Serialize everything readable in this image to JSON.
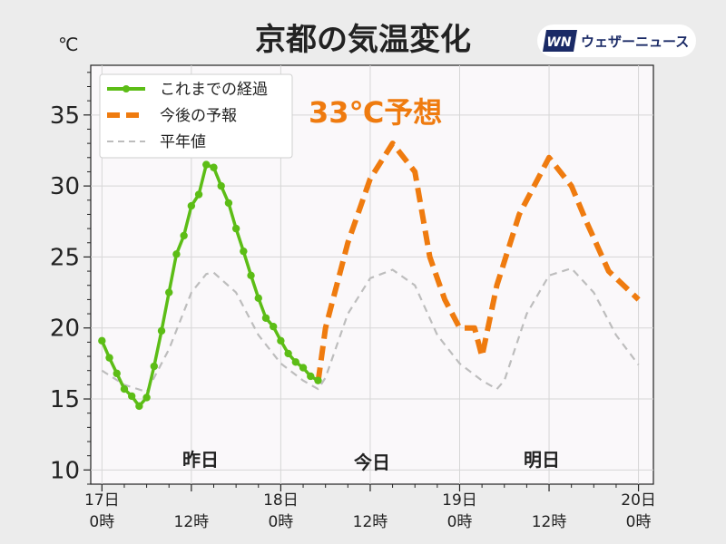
{
  "header": {
    "title": "京都の気温変化",
    "unit": "℃"
  },
  "brand": {
    "logo_text": "WN",
    "name": "ウェザーニュース"
  },
  "annotation": "33℃予想",
  "day_labels": [
    "昨日",
    "今日",
    "明日"
  ],
  "colors": {
    "observed": "#5cbd16",
    "forecast": "#ef7b0f",
    "normal": "#bdbdbd",
    "annotation": "#ef7b0f",
    "brand": "#1a2a66"
  },
  "chart_data": {
    "type": "line",
    "title": "京都の気温変化",
    "ylabel": "℃",
    "ylim": [
      9,
      38.5
    ],
    "xlim": [
      -1.5,
      74
    ],
    "grid": true,
    "legend_position": "top-left",
    "yticks": [
      10,
      15,
      20,
      25,
      30,
      35
    ],
    "xticks": [
      {
        "x": 0,
        "label_line1": "17日",
        "label_line2": "0時"
      },
      {
        "x": 12,
        "label_line1": "",
        "label_line2": "12時"
      },
      {
        "x": 24,
        "label_line1": "18日",
        "label_line2": "0時"
      },
      {
        "x": 36,
        "label_line1": "",
        "label_line2": "12時"
      },
      {
        "x": 48,
        "label_line1": "19日",
        "label_line2": "0時"
      },
      {
        "x": 60,
        "label_line1": "",
        "label_line2": "12時"
      },
      {
        "x": 72,
        "label_line1": "20日",
        "label_line2": "0時"
      }
    ],
    "series": [
      {
        "name": "これまでの経過",
        "style": "solid-markers",
        "x": [
          0,
          1,
          2,
          3,
          4,
          5,
          6,
          7,
          8,
          9,
          10,
          11,
          12,
          13,
          14,
          15,
          16,
          17,
          18,
          19,
          20,
          21,
          22,
          23,
          24,
          25,
          26,
          27,
          28,
          29
        ],
        "y": [
          19.1,
          17.9,
          16.8,
          15.7,
          15.2,
          14.5,
          15.1,
          17.3,
          19.8,
          22.5,
          25.2,
          26.5,
          28.6,
          29.4,
          31.5,
          31.3,
          30.0,
          28.8,
          27.0,
          25.4,
          23.7,
          22.1,
          20.7,
          20.1,
          19.1,
          18.2,
          17.6,
          17.2,
          16.6,
          16.3
        ]
      },
      {
        "name": "今後の予報",
        "style": "dashed-thick",
        "x": [
          29,
          30,
          33,
          36,
          39,
          42,
          44,
          46,
          48,
          50,
          51,
          53,
          56,
          60,
          63,
          65,
          68,
          72
        ],
        "y": [
          16.2,
          20.0,
          26.0,
          30.5,
          33.0,
          31.0,
          25.0,
          22.0,
          20.0,
          20.0,
          18.0,
          23.0,
          28.0,
          32.0,
          30.0,
          27.5,
          24.0,
          22.0
        ]
      },
      {
        "name": "平年値",
        "style": "dashed-thin",
        "x": [
          0,
          3,
          6,
          9,
          12,
          14,
          15,
          18,
          21,
          24,
          27,
          29,
          30,
          33,
          36,
          39,
          42,
          45,
          48,
          51,
          53,
          54,
          57,
          60,
          63,
          66,
          69,
          72
        ],
        "y": [
          17.0,
          16.0,
          15.5,
          18.5,
          22.5,
          23.8,
          23.9,
          22.5,
          19.5,
          17.5,
          16.3,
          15.7,
          16.5,
          21.0,
          23.5,
          24.1,
          23.0,
          19.5,
          17.5,
          16.3,
          15.7,
          16.3,
          21.0,
          23.7,
          24.2,
          22.5,
          19.5,
          17.4
        ]
      }
    ]
  }
}
